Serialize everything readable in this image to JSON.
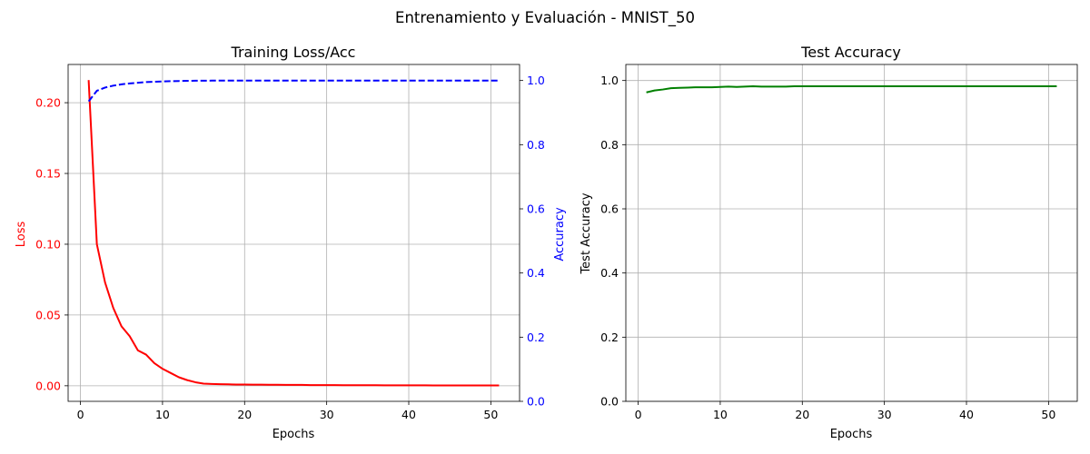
{
  "figure": {
    "suptitle": "Entrenamiento y Evaluación - MNIST_50"
  },
  "colors": {
    "loss": "#ff0000",
    "accuracy": "#0000ff",
    "test": "#008000",
    "grid": "#b0b0b0"
  },
  "chart_data": [
    {
      "type": "line",
      "title": "Training Loss/Acc",
      "xlabel": "Epochs",
      "ylabel": "Loss",
      "y2label": "Accuracy",
      "xlim": [
        -1.5,
        53.5
      ],
      "ylim": [
        -0.011,
        0.227
      ],
      "y2lim": [
        0,
        1.05
      ],
      "xticks": [
        0,
        10,
        20,
        30,
        40,
        50
      ],
      "yticks": [
        "0.00",
        "0.05",
        "0.10",
        "0.15",
        "0.20"
      ],
      "y2ticks": [
        "0.0",
        "0.2",
        "0.4",
        "0.6",
        "0.8",
        "1.0"
      ],
      "grid": true,
      "series": [
        {
          "name": "Loss",
          "axis": "left",
          "style": "solid",
          "color": "#ff0000",
          "x": [
            1,
            2,
            3,
            4,
            5,
            6,
            7,
            8,
            9,
            10,
            11,
            12,
            13,
            14,
            15,
            16,
            17,
            18,
            19,
            20,
            21,
            22,
            23,
            24,
            25,
            26,
            27,
            28,
            29,
            30,
            31,
            32,
            33,
            34,
            35,
            36,
            37,
            38,
            39,
            40,
            41,
            42,
            43,
            44,
            45,
            46,
            47,
            48,
            49,
            50,
            51
          ],
          "y": [
            0.216,
            0.1,
            0.073,
            0.055,
            0.042,
            0.035,
            0.025,
            0.022,
            0.016,
            0.012,
            0.009,
            0.006,
            0.004,
            0.0025,
            0.0015,
            0.0013,
            0.0011,
            0.001,
            0.0009,
            0.0009,
            0.0008,
            0.0008,
            0.0007,
            0.0007,
            0.0006,
            0.0006,
            0.0006,
            0.0005,
            0.0005,
            0.0005,
            0.0005,
            0.0004,
            0.0004,
            0.0004,
            0.0004,
            0.0004,
            0.0003,
            0.0003,
            0.0003,
            0.0003,
            0.0003,
            0.0003,
            0.0002,
            0.0002,
            0.0002,
            0.0002,
            0.0002,
            0.0002,
            0.0002,
            0.0002,
            0.0002
          ]
        },
        {
          "name": "Accuracy",
          "axis": "right",
          "style": "dashed",
          "color": "#0000ff",
          "x": [
            1,
            2,
            3,
            4,
            5,
            6,
            7,
            8,
            9,
            10,
            11,
            12,
            13,
            14,
            15,
            16,
            17,
            18,
            19,
            20,
            21,
            22,
            23,
            24,
            25,
            26,
            27,
            28,
            29,
            30,
            31,
            32,
            33,
            34,
            35,
            36,
            37,
            38,
            39,
            40,
            41,
            42,
            43,
            44,
            45,
            46,
            47,
            48,
            49,
            50,
            51
          ],
          "y": [
            0.935,
            0.968,
            0.978,
            0.984,
            0.988,
            0.991,
            0.993,
            0.995,
            0.996,
            0.997,
            0.998,
            0.9985,
            0.999,
            0.9993,
            0.9995,
            0.9996,
            0.9997,
            0.9998,
            0.9998,
            0.9999,
            0.9999,
            0.9999,
            0.9999,
            0.9999,
            0.9999,
            0.9999,
            0.9999,
            0.9999,
            0.9999,
            0.9999,
            0.9999,
            0.9999,
            0.9999,
            0.9999,
            0.9999,
            0.9999,
            0.9999,
            0.9999,
            0.9999,
            0.9999,
            0.9999,
            0.9999,
            0.9999,
            0.9999,
            0.9999,
            0.9999,
            0.9999,
            0.9999,
            0.9999,
            0.9999,
            0.9999
          ]
        }
      ]
    },
    {
      "type": "line",
      "title": "Test Accuracy",
      "xlabel": "Epochs",
      "ylabel": "Test Accuracy",
      "xlim": [
        -1.5,
        53.5
      ],
      "ylim": [
        0,
        1.05
      ],
      "xticks": [
        0,
        10,
        20,
        30,
        40,
        50
      ],
      "yticks": [
        "0.0",
        "0.2",
        "0.4",
        "0.6",
        "0.8",
        "1.0"
      ],
      "grid": true,
      "series": [
        {
          "name": "Test Accuracy",
          "axis": "left",
          "style": "solid",
          "color": "#008000",
          "x": [
            1,
            2,
            3,
            4,
            5,
            6,
            7,
            8,
            9,
            10,
            11,
            12,
            13,
            14,
            15,
            16,
            17,
            18,
            19,
            20,
            21,
            22,
            23,
            24,
            25,
            26,
            27,
            28,
            29,
            30,
            31,
            32,
            33,
            34,
            35,
            36,
            37,
            38,
            39,
            40,
            41,
            42,
            43,
            44,
            45,
            46,
            47,
            48,
            49,
            50,
            51
          ],
          "y": [
            0.963,
            0.969,
            0.972,
            0.976,
            0.977,
            0.978,
            0.979,
            0.979,
            0.979,
            0.98,
            0.981,
            0.98,
            0.981,
            0.982,
            0.981,
            0.981,
            0.981,
            0.981,
            0.982,
            0.982,
            0.982,
            0.982,
            0.982,
            0.982,
            0.982,
            0.982,
            0.982,
            0.982,
            0.982,
            0.982,
            0.982,
            0.982,
            0.982,
            0.982,
            0.982,
            0.982,
            0.982,
            0.982,
            0.982,
            0.982,
            0.982,
            0.982,
            0.982,
            0.982,
            0.982,
            0.982,
            0.982,
            0.982,
            0.982,
            0.982,
            0.982
          ]
        }
      ]
    }
  ]
}
